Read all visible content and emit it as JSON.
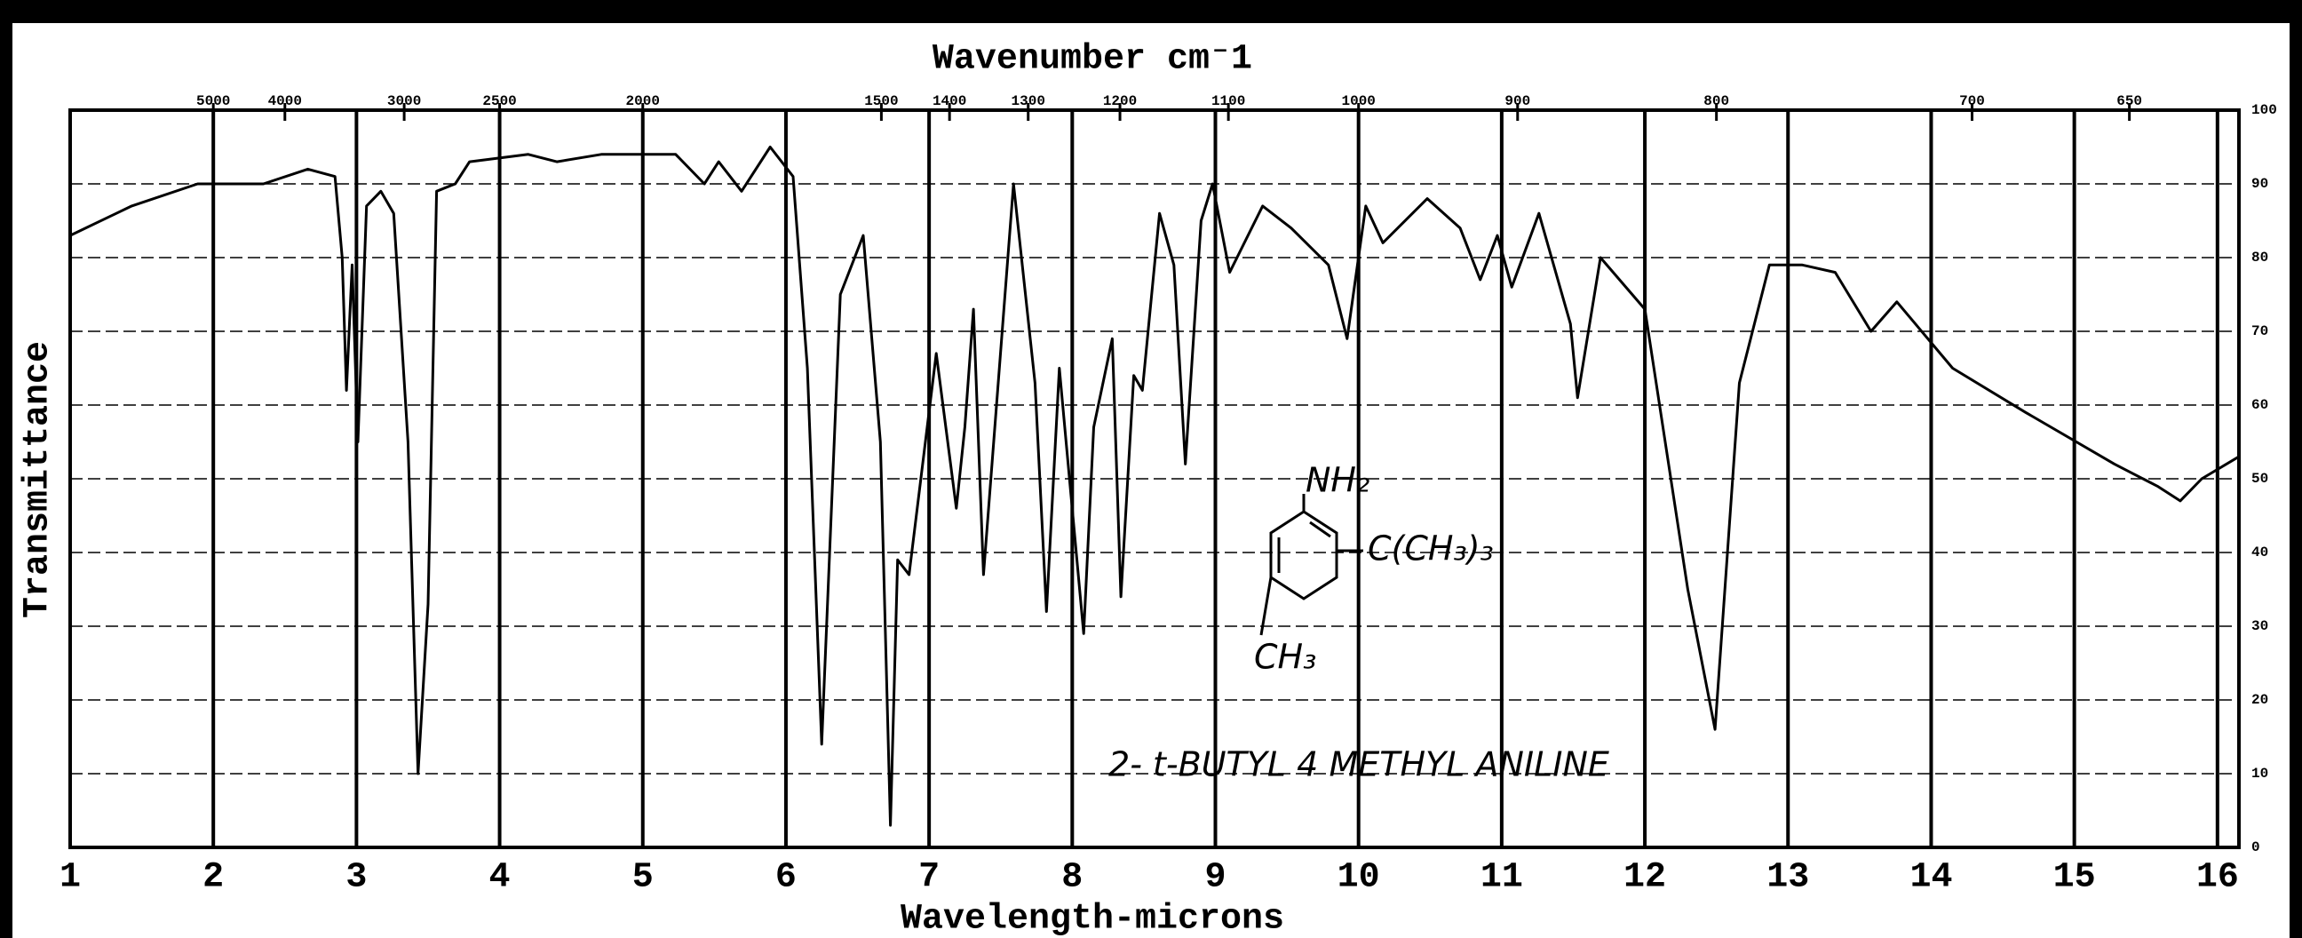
{
  "chart_data": {
    "type": "line",
    "title": "Wavenumber cm⁻1",
    "x_label": "Wavelength-microns",
    "y_label": "Transmittance",
    "annotation": "2- t-BUTYL 4 METHYL ANILINE",
    "structure_labels": [
      "NH₂",
      "C(CH₃)₃",
      "CH₃"
    ],
    "xlim": [
      1,
      16.15
    ],
    "ylim": [
      0,
      100
    ],
    "xticks": [
      1,
      2,
      3,
      4,
      5,
      6,
      7,
      8,
      9,
      10,
      11,
      12,
      13,
      14,
      15,
      16
    ],
    "yticks": [
      0,
      10,
      20,
      30,
      40,
      50,
      60,
      70,
      80,
      90,
      100
    ],
    "top_ticks": [
      5000,
      4000,
      3000,
      2500,
      2000,
      1500,
      1400,
      1300,
      1200,
      1100,
      1000,
      900,
      800,
      700,
      650
    ],
    "grid": true,
    "series": [
      {
        "name": "2- t-BUTYL 4 METHYL ANILINE",
        "color": "#000000",
        "x": [
          1.0,
          1.43,
          1.89,
          2.35,
          2.66,
          2.85,
          2.9,
          2.93,
          2.97,
          3.01,
          3.07,
          3.17,
          3.26,
          3.36,
          3.43,
          3.5,
          3.56,
          3.69,
          3.79,
          4.2,
          4.4,
          4.71,
          5.23,
          5.43,
          5.53,
          5.69,
          5.89,
          6.05,
          6.15,
          6.25,
          6.38,
          6.54,
          6.66,
          6.73,
          6.78,
          6.86,
          7.05,
          7.19,
          7.25,
          7.31,
          7.38,
          7.59,
          7.74,
          7.82,
          7.91,
          8.08,
          8.15,
          8.28,
          8.34,
          8.43,
          8.49,
          8.61,
          8.71,
          8.79,
          8.9,
          8.98,
          9.1,
          9.33,
          9.53,
          9.79,
          9.92,
          10.05,
          10.17,
          10.48,
          10.71,
          10.85,
          10.97,
          11.07,
          11.26,
          11.48,
          11.53,
          11.69,
          12.0,
          12.3,
          12.49,
          12.66,
          12.87,
          13.1,
          13.33,
          13.58,
          13.76,
          14.15,
          14.66,
          15.28,
          15.58,
          15.74,
          15.89,
          16.15
        ],
        "values": [
          83,
          87,
          90,
          90,
          92,
          91,
          80,
          62,
          79,
          55,
          87,
          89,
          86,
          55,
          10,
          33,
          89,
          90,
          93,
          94,
          93,
          94,
          94,
          90,
          93,
          89,
          95,
          91,
          65,
          14,
          75,
          83,
          55,
          3,
          39,
          37,
          67,
          46,
          57,
          73,
          37,
          90,
          63,
          32,
          65,
          29,
          57,
          69,
          34,
          64,
          62,
          86,
          79,
          52,
          85,
          90,
          78,
          87,
          84,
          79,
          69,
          87,
          82,
          88,
          84,
          77,
          83,
          76,
          86,
          71,
          61,
          80,
          73,
          35,
          16,
          63,
          79,
          79,
          78,
          70,
          74,
          65,
          59,
          52,
          49,
          47,
          50,
          53
        ]
      }
    ]
  }
}
